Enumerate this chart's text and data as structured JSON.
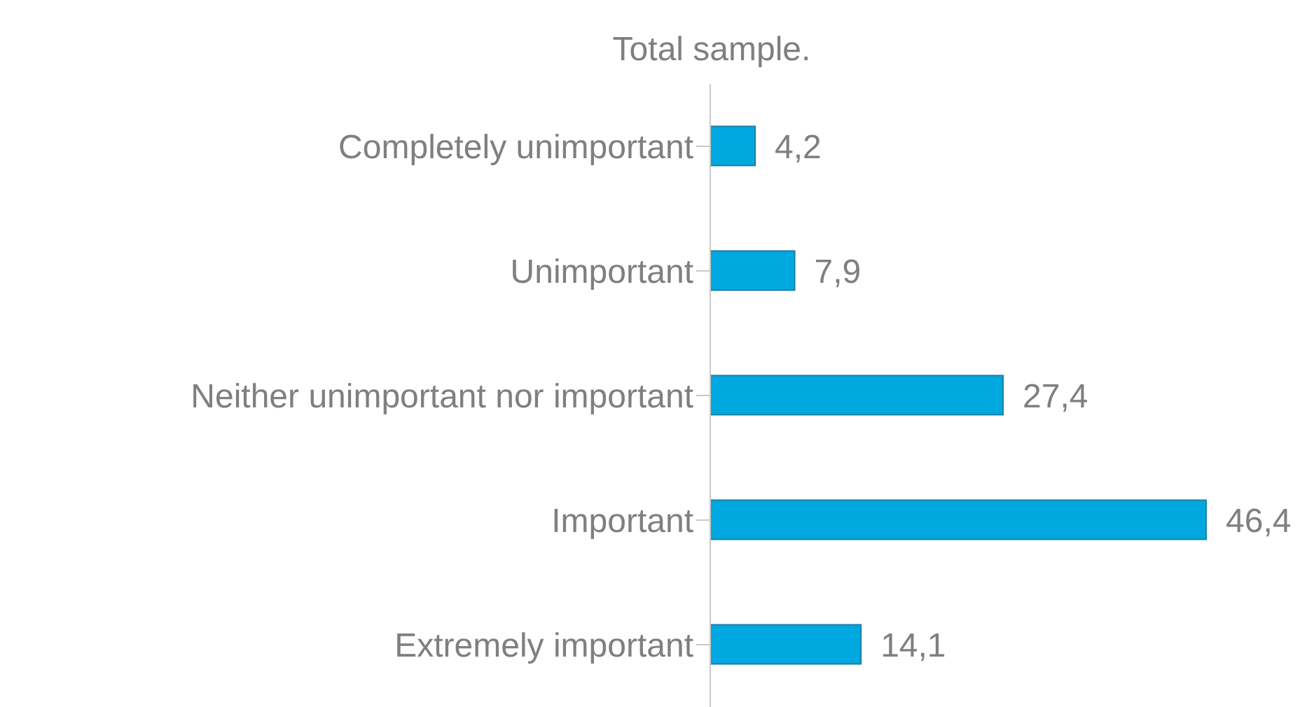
{
  "chart_data": {
    "type": "bar",
    "orientation": "horizontal",
    "subtitle": "Total sample.",
    "categories": [
      "Completely unimportant",
      "Unimportant",
      "Neither unimportant nor important",
      "Important",
      "Extremely important"
    ],
    "values": [
      4.2,
      7.9,
      27.4,
      46.4,
      14.1
    ],
    "value_labels": [
      "4,2",
      "7,9",
      "27,4",
      "46,4",
      "14,1"
    ],
    "color": "#00a8e0",
    "grid": false,
    "legend": false
  }
}
